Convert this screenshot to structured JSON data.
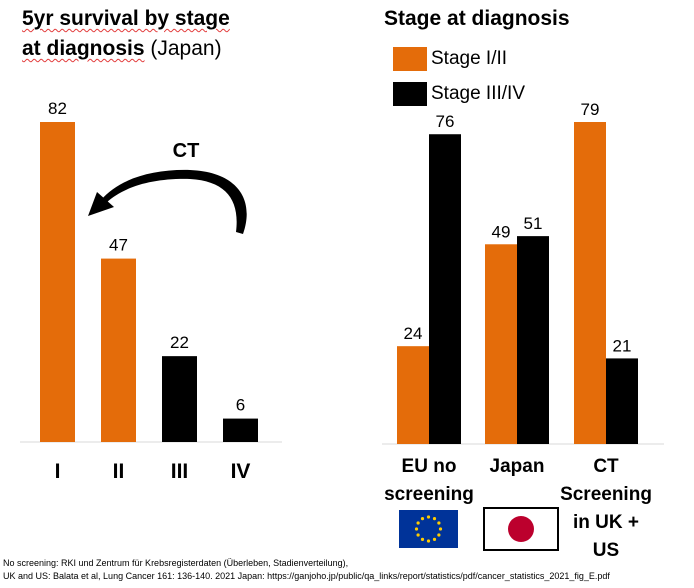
{
  "colors": {
    "stage_1_2": "#E46C0A",
    "stage_3_4": "#000000"
  },
  "icons": {
    "eu_flag": "eu-flag-icon",
    "japan_flag": "japan-flag-icon",
    "ct_arrow": "curved-arrow-icon"
  },
  "chart_data": [
    {
      "type": "bar",
      "title_main": "5yr survival by stage",
      "title_line2_prefix": "at diagnosis",
      "title_line2_suffix": "(Japan)",
      "categories": [
        "I",
        "II",
        "III",
        "IV"
      ],
      "values": [
        82,
        47,
        22,
        6
      ],
      "bar_colors": [
        "#E46C0A",
        "#E46C0A",
        "#000000",
        "#000000"
      ],
      "ylim": [
        0,
        82
      ],
      "grid": false,
      "annotation": "CT"
    },
    {
      "type": "bar",
      "title": "Stage at diagnosis",
      "categories": [
        [
          "EU no",
          "screening"
        ],
        [
          "Japan"
        ],
        [
          "CT",
          "Screening",
          "in UK +",
          "US"
        ]
      ],
      "series": [
        {
          "name": "Stage I/II",
          "values": [
            24,
            49,
            79
          ]
        },
        {
          "name": "Stage III/IV",
          "values": [
            76,
            51,
            21
          ]
        }
      ],
      "ylim": [
        0,
        79
      ],
      "grid": false,
      "legend": "top-left"
    }
  ],
  "footnotes": [
    "No screening: RKI und  Zentrum für Krebsregisterdaten (Überleben, Stadienverteilung),",
    "UK and US: Balata et al, Lung Cancer 161: 136-140. 2021    Japan: https://ganjoho.jp/public/qa_links/report/statistics/pdf/cancer_statistics_2021_fig_E.pdf"
  ]
}
